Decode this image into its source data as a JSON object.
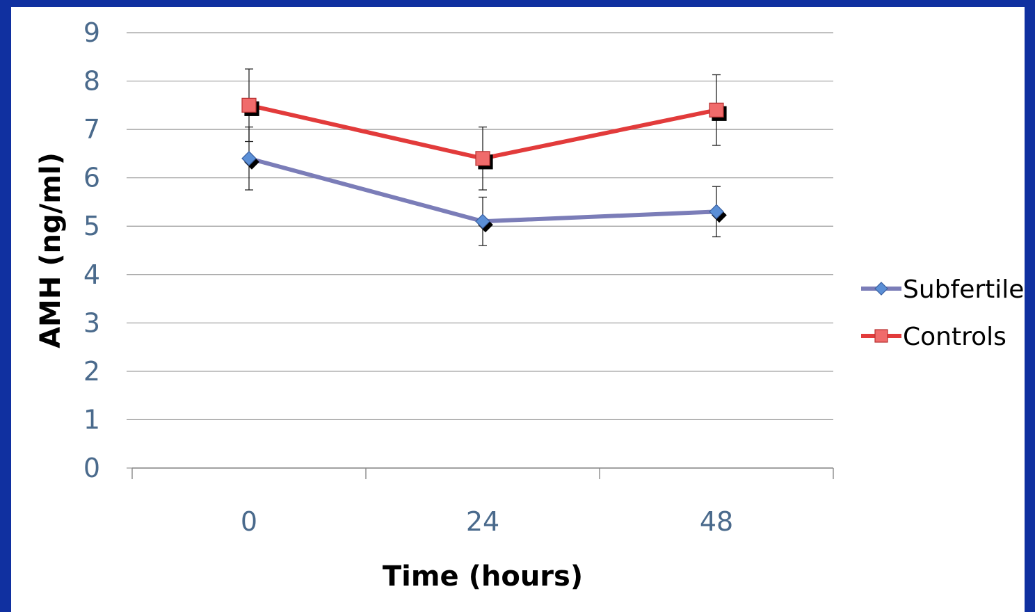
{
  "chart_data": {
    "type": "line",
    "title": "",
    "xlabel": "Time (hours)",
    "ylabel": "AMH (ng/ml)",
    "categories": [
      "0",
      "24",
      "48"
    ],
    "ylim": [
      0,
      9
    ],
    "yticks": [
      "0",
      "1",
      "2",
      "3",
      "4",
      "5",
      "6",
      "7",
      "8",
      "9"
    ],
    "grid": true,
    "legend_position": "right",
    "series": [
      {
        "name": "Subfertile",
        "marker": "diamond",
        "color": "#7b7db8",
        "marker_color": "#5b8fd6",
        "values": [
          6.4,
          5.1,
          5.3
        ],
        "error_low": [
          5.75,
          4.6,
          4.78
        ],
        "error_high": [
          7.05,
          5.6,
          5.82
        ]
      },
      {
        "name": "Controls",
        "marker": "square",
        "color": "#e23b3b",
        "marker_color": "#f06b6b",
        "values": [
          7.5,
          6.4,
          7.4
        ],
        "error_low": [
          6.75,
          5.75,
          6.67
        ],
        "error_high": [
          8.25,
          7.05,
          8.13
        ]
      }
    ]
  }
}
